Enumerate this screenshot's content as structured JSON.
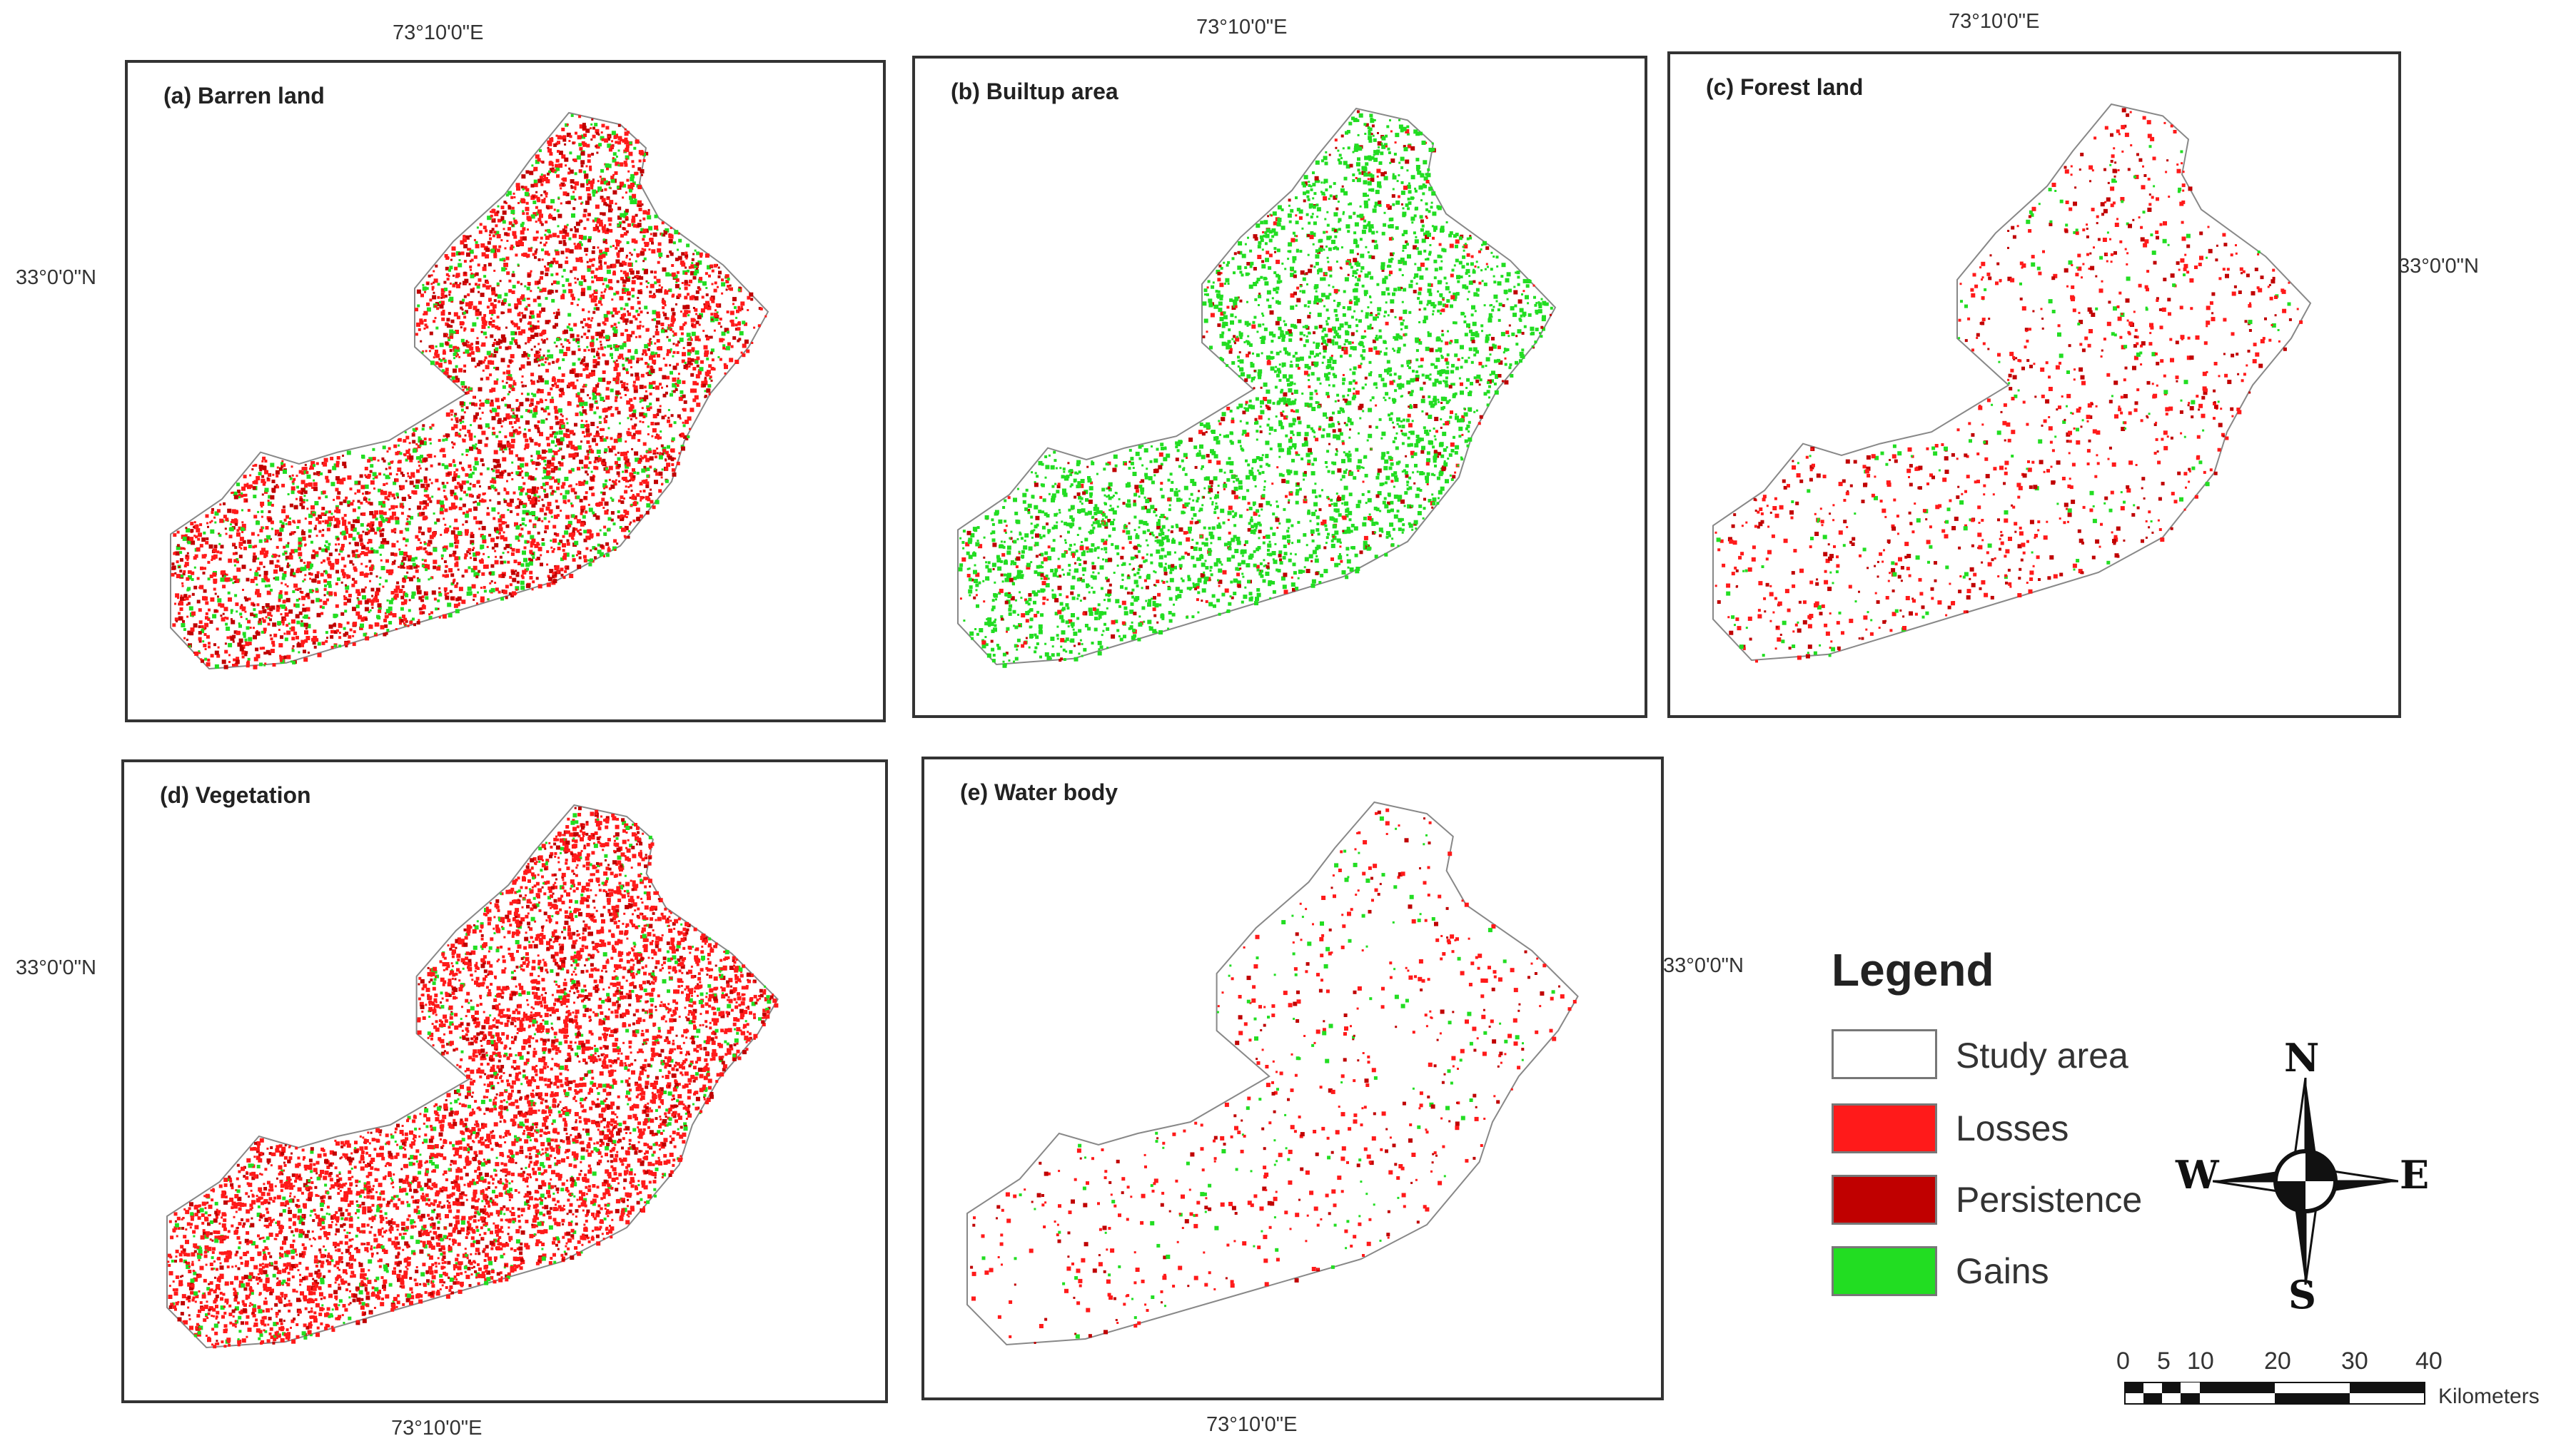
{
  "panels": [
    {
      "id": "a",
      "title": "(a) Barren land"
    },
    {
      "id": "b",
      "title": "(b) Builtup area"
    },
    {
      "id": "c",
      "title": "(c) Forest land"
    },
    {
      "id": "d",
      "title": "(d) Vegetation"
    },
    {
      "id": "e",
      "title": "(e) Water body"
    }
  ],
  "coords": {
    "lon": "73°10'0\"E",
    "lat": "33°0'0\"N"
  },
  "legend": {
    "title": "Legend",
    "items": [
      {
        "label": "Study area",
        "color": "#ffffff"
      },
      {
        "label": "Losses",
        "color": "#ff1a1a"
      },
      {
        "label": "Persistence",
        "color": "#c00000"
      },
      {
        "label": "Gains",
        "color": "#22dd22"
      }
    ]
  },
  "compass": {
    "n": "N",
    "s": "S",
    "e": "E",
    "w": "W"
  },
  "scalebar": {
    "ticks": [
      "0",
      "5",
      "10",
      "20",
      "30",
      "40"
    ],
    "unit": "Kilometers"
  }
}
